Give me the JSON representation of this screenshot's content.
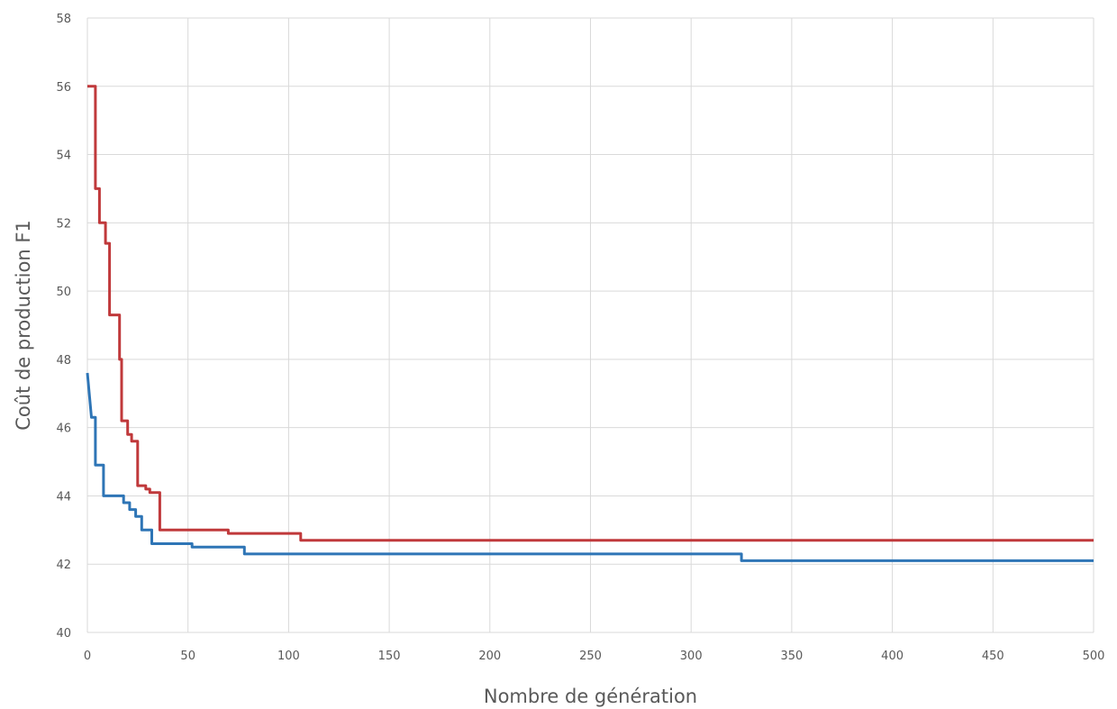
{
  "chart_data": {
    "type": "line",
    "title": "",
    "xlabel": "Nombre de génération",
    "ylabel": "Coût de production F1",
    "xlim": [
      0,
      500
    ],
    "ylim": [
      40,
      58
    ],
    "x_ticks": [
      "0",
      "50",
      "100",
      "150",
      "200",
      "250",
      "300",
      "350",
      "400",
      "450",
      "500"
    ],
    "y_ticks": [
      "40",
      "42",
      "44",
      "46",
      "48",
      "50",
      "52",
      "54",
      "56",
      "58"
    ],
    "grid": true,
    "legend": "none",
    "series": [
      {
        "color": "#c0393b",
        "points": [
          [
            0,
            56.0
          ],
          [
            4,
            56.0
          ],
          [
            4,
            53.0
          ],
          [
            6,
            53.0
          ],
          [
            6,
            52.0
          ],
          [
            9,
            52.0
          ],
          [
            9,
            51.4
          ],
          [
            11,
            51.4
          ],
          [
            11,
            49.3
          ],
          [
            16,
            49.3
          ],
          [
            16,
            48.0
          ],
          [
            17,
            48.0
          ],
          [
            17,
            46.2
          ],
          [
            20,
            46.2
          ],
          [
            20,
            45.8
          ],
          [
            22,
            45.8
          ],
          [
            22,
            45.6
          ],
          [
            25,
            45.6
          ],
          [
            25,
            44.3
          ],
          [
            29,
            44.3
          ],
          [
            29,
            44.2
          ],
          [
            31,
            44.2
          ],
          [
            31,
            44.1
          ],
          [
            36,
            44.1
          ],
          [
            36,
            43.0
          ],
          [
            70,
            43.0
          ],
          [
            70,
            42.9
          ],
          [
            106,
            42.9
          ],
          [
            106,
            42.7
          ],
          [
            500,
            42.7
          ]
        ]
      },
      {
        "color": "#2e75b6",
        "points": [
          [
            0,
            47.6
          ],
          [
            2,
            46.3
          ],
          [
            4,
            46.3
          ],
          [
            4,
            44.9
          ],
          [
            8,
            44.9
          ],
          [
            8,
            44.0
          ],
          [
            18,
            44.0
          ],
          [
            18,
            43.8
          ],
          [
            21,
            43.8
          ],
          [
            21,
            43.6
          ],
          [
            24,
            43.6
          ],
          [
            24,
            43.4
          ],
          [
            27,
            43.4
          ],
          [
            27,
            43.0
          ],
          [
            32,
            43.0
          ],
          [
            32,
            42.6
          ],
          [
            52,
            42.6
          ],
          [
            52,
            42.5
          ],
          [
            78,
            42.5
          ],
          [
            78,
            42.3
          ],
          [
            325,
            42.3
          ],
          [
            325,
            42.1
          ],
          [
            500,
            42.1
          ]
        ]
      }
    ]
  }
}
